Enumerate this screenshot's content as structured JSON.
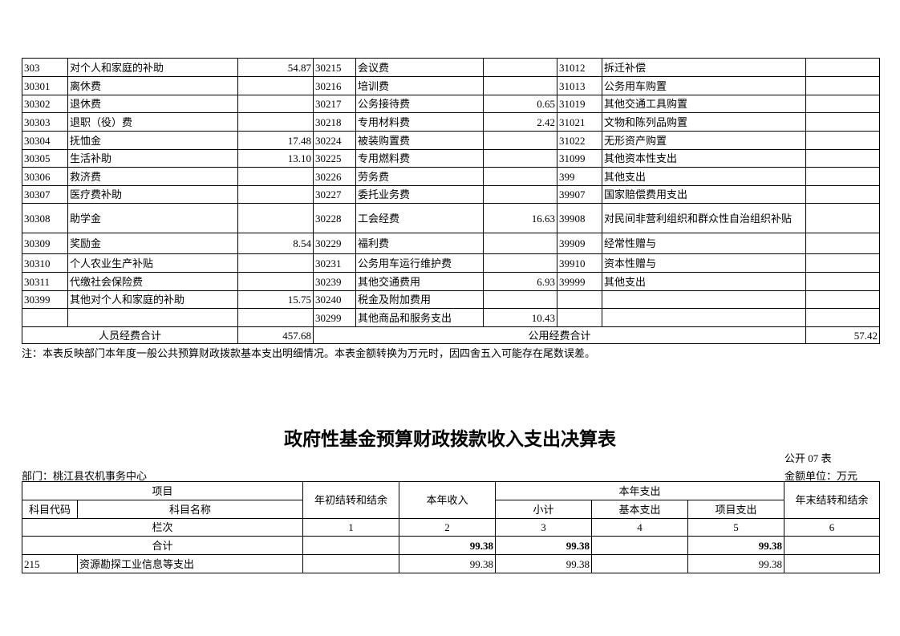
{
  "expense_table": {
    "rows": [
      [
        "303",
        "对个人和家庭的补助",
        "54.87",
        "30215",
        "会议费",
        null,
        "31012",
        "拆迁补偿",
        null
      ],
      [
        "30301",
        "离休费",
        null,
        "30216",
        "培训费",
        null,
        "31013",
        "公务用车购置",
        null
      ],
      [
        "30302",
        "退休费",
        null,
        "30217",
        "公务接待费",
        "0.65",
        "31019",
        "其他交通工具购置",
        null
      ],
      [
        "30303",
        "退职（役）费",
        null,
        "30218",
        "专用材料费",
        "2.42",
        "31021",
        "文物和陈列品购置",
        null
      ],
      [
        "30304",
        "抚恤金",
        "17.48",
        "30224",
        "被装购置费",
        null,
        "31022",
        "无形资产购置",
        null
      ],
      [
        "30305",
        "生活补助",
        "13.10",
        "30225",
        "专用燃料费",
        null,
        "31099",
        "其他资本性支出",
        null
      ],
      [
        "30306",
        "救济费",
        null,
        "30226",
        "劳务费",
        null,
        "399",
        "其他支出",
        null
      ],
      [
        "30307",
        "医疗费补助",
        null,
        "30227",
        "委托业务费",
        null,
        "39907",
        "国家赔偿费用支出",
        null
      ],
      [
        "30308",
        "助学金",
        null,
        "30228",
        "工会经费",
        "16.63",
        "39908",
        "对民间非营利组织和群众性自治组织补贴",
        null
      ],
      [
        "30309",
        "奖励金",
        "8.54",
        "30229",
        "福利费",
        null,
        "39909",
        "经常性赠与",
        null
      ],
      [
        "30310",
        "个人农业生产补贴",
        null,
        "30231",
        "公务用车运行维护费",
        null,
        "39910",
        "资本性赠与",
        null
      ],
      [
        "30311",
        "代缴社会保险费",
        null,
        "30239",
        "其他交通费用",
        "6.93",
        "39999",
        "其他支出",
        null
      ],
      [
        "30399",
        "其他对个人和家庭的补助",
        "15.75",
        "30240",
        "税金及附加费用",
        null,
        null,
        null,
        null
      ],
      [
        null,
        null,
        null,
        "30299",
        "其他商品和服务支出",
        "10.43",
        null,
        null,
        null
      ]
    ],
    "totals": {
      "personnel_label": "人员经费合计",
      "personnel_value": "457.68",
      "public_label": "公用经费合计",
      "public_value": "57.42"
    },
    "note": "注：本表反映部门本年度一般公共预算财政拨款基本支出明细情况。本表金额转换为万元时，因四舍五入可能存在尾数误差。"
  },
  "fund_table": {
    "title": "政府性基金预算财政拨款收入支出决算表",
    "table_no": "公开 07 表",
    "department": "部门：桃江县农机事务中心",
    "unit": "金额单位：万元",
    "headers": {
      "item": "项目",
      "code": "科目代码",
      "name": "科目名称",
      "opening": "年初结转和结余",
      "income": "本年收入",
      "expense": "本年支出",
      "subtotal": "小计",
      "basic": "基本支出",
      "project": "项目支出",
      "closing": "年末结转和结余",
      "column_no": "栏次"
    },
    "column_numbers": [
      "1",
      "2",
      "3",
      "4",
      "5",
      "6"
    ],
    "total": {
      "label": "合计",
      "values": [
        null,
        "99.38",
        "99.38",
        null,
        "99.38",
        null
      ]
    },
    "rows": [
      {
        "code": "215",
        "name": "资源勘探工业信息等支出",
        "values": [
          null,
          "99.38",
          "99.38",
          null,
          "99.38",
          null
        ]
      }
    ]
  }
}
